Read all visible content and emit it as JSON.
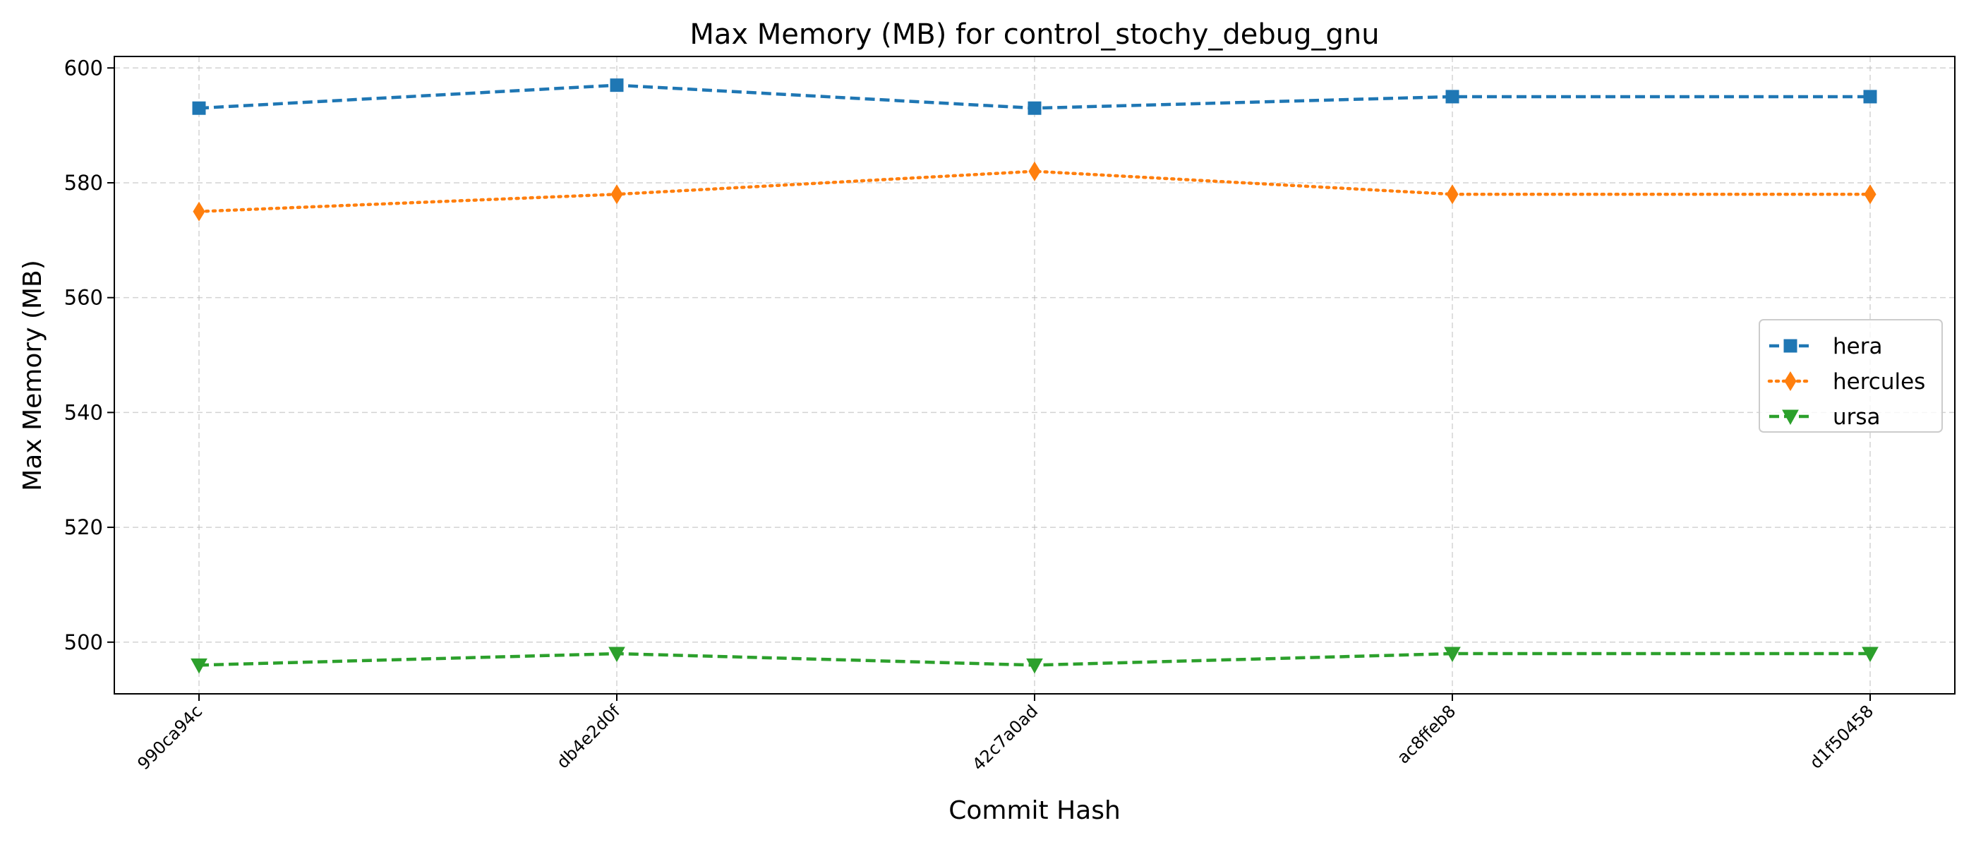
{
  "chart_data": {
    "type": "line",
    "title": "Max Memory (MB) for control_stochy_debug_gnu",
    "xlabel": "Commit Hash",
    "ylabel": "Max Memory (MB)",
    "categories": [
      "990ca94c",
      "db4e2d0f",
      "42c7a0ad",
      "ac8ffeb8",
      "d1f50458"
    ],
    "ylim": [
      491,
      602
    ],
    "yticks": [
      500,
      520,
      540,
      560,
      580,
      600
    ],
    "grid": true,
    "legend_position": "center-right",
    "series": [
      {
        "name": "hera",
        "values": [
          593,
          597,
          593,
          595,
          595
        ],
        "color": "#1f77b4",
        "dash": "dashed",
        "marker": "square"
      },
      {
        "name": "hercules",
        "values": [
          575,
          578,
          582,
          578,
          578
        ],
        "color": "#ff7f0e",
        "dash": "dotted",
        "marker": "diamond"
      },
      {
        "name": "ursa",
        "values": [
          496,
          498,
          496,
          498,
          498
        ],
        "color": "#2ca02c",
        "dash": "dashed",
        "marker": "triangle-down"
      }
    ]
  }
}
